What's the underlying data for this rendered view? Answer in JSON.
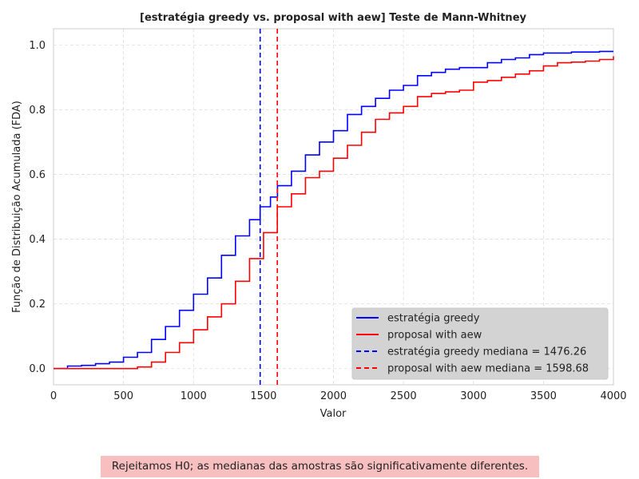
{
  "chart_data": {
    "type": "line",
    "title": "[estratégia greedy vs. proposal with aew] Teste de Mann-Whitney",
    "xlabel": "Valor",
    "ylabel": "Função de Distribuição Acumulada (FDA)",
    "xlim": [
      0,
      4000
    ],
    "ylim": [
      -0.05,
      1.05
    ],
    "xticks": [
      "0",
      "500",
      "1000",
      "1500",
      "2000",
      "2500",
      "3000",
      "3500",
      "4000"
    ],
    "yticks": [
      "0.0",
      "0.2",
      "0.4",
      "0.6",
      "0.8",
      "1.0"
    ],
    "grid": true,
    "legend_position": "lower-right",
    "series": [
      {
        "name": "estratégia greedy",
        "color": "#0000ff",
        "style": "step",
        "points": [
          [
            0,
            0.0
          ],
          [
            100,
            0.008
          ],
          [
            200,
            0.01
          ],
          [
            300,
            0.015
          ],
          [
            400,
            0.02
          ],
          [
            500,
            0.035
          ],
          [
            600,
            0.05
          ],
          [
            700,
            0.09
          ],
          [
            800,
            0.13
          ],
          [
            900,
            0.18
          ],
          [
            1000,
            0.23
          ],
          [
            1100,
            0.28
          ],
          [
            1200,
            0.35
          ],
          [
            1300,
            0.41
          ],
          [
            1400,
            0.46
          ],
          [
            1476.26,
            0.5
          ],
          [
            1550,
            0.53
          ],
          [
            1600,
            0.565
          ],
          [
            1700,
            0.61
          ],
          [
            1800,
            0.66
          ],
          [
            1900,
            0.7
          ],
          [
            2000,
            0.735
          ],
          [
            2100,
            0.785
          ],
          [
            2200,
            0.81
          ],
          [
            2300,
            0.835
          ],
          [
            2400,
            0.86
          ],
          [
            2500,
            0.875
          ],
          [
            2600,
            0.905
          ],
          [
            2700,
            0.915
          ],
          [
            2800,
            0.925
          ],
          [
            2900,
            0.93
          ],
          [
            3000,
            0.93
          ],
          [
            3100,
            0.945
          ],
          [
            3200,
            0.955
          ],
          [
            3300,
            0.96
          ],
          [
            3400,
            0.97
          ],
          [
            3500,
            0.975
          ],
          [
            3700,
            0.978
          ],
          [
            3900,
            0.98
          ],
          [
            4000,
            0.98
          ]
        ]
      },
      {
        "name": "proposal with aew",
        "color": "#ff0000",
        "style": "step",
        "points": [
          [
            0,
            0.0
          ],
          [
            550,
            0.0
          ],
          [
            600,
            0.005
          ],
          [
            700,
            0.02
          ],
          [
            800,
            0.05
          ],
          [
            900,
            0.08
          ],
          [
            1000,
            0.12
          ],
          [
            1100,
            0.16
          ],
          [
            1200,
            0.2
          ],
          [
            1300,
            0.27
          ],
          [
            1400,
            0.34
          ],
          [
            1500,
            0.42
          ],
          [
            1598.68,
            0.5
          ],
          [
            1700,
            0.54
          ],
          [
            1800,
            0.59
          ],
          [
            1900,
            0.61
          ],
          [
            2000,
            0.65
          ],
          [
            2100,
            0.69
          ],
          [
            2200,
            0.73
          ],
          [
            2300,
            0.77
          ],
          [
            2400,
            0.79
          ],
          [
            2500,
            0.81
          ],
          [
            2600,
            0.84
          ],
          [
            2700,
            0.85
          ],
          [
            2800,
            0.855
          ],
          [
            2900,
            0.86
          ],
          [
            3000,
            0.885
          ],
          [
            3100,
            0.89
          ],
          [
            3200,
            0.9
          ],
          [
            3300,
            0.91
          ],
          [
            3400,
            0.92
          ],
          [
            3500,
            0.935
          ],
          [
            3600,
            0.945
          ],
          [
            3700,
            0.947
          ],
          [
            3800,
            0.95
          ],
          [
            3900,
            0.955
          ],
          [
            4000,
            0.965
          ]
        ]
      }
    ],
    "medians": [
      {
        "label": "estratégia greedy mediana = 1476.26",
        "value": 1476.26,
        "color": "#0000ff",
        "style": "dashed"
      },
      {
        "label": "proposal with aew mediana = 1598.68",
        "value": 1598.68,
        "color": "#ff0000",
        "style": "dashed"
      }
    ]
  },
  "footnote": "Rejeitamos H0; as medianas das amostras são significativamente diferentes."
}
